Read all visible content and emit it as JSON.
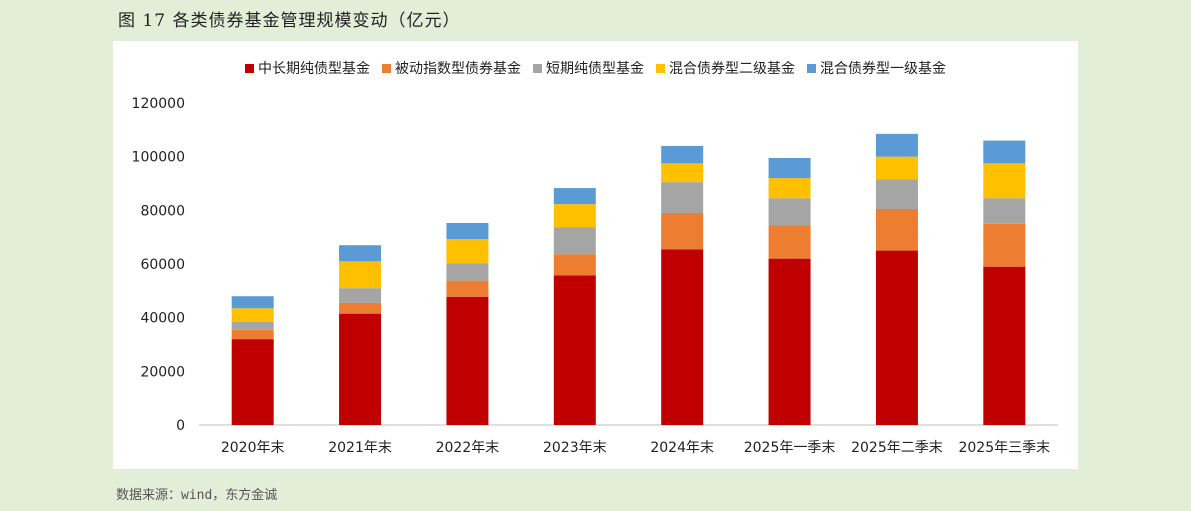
{
  "figure": {
    "title": "图 17 各类债券基金管理规模变动（亿元）",
    "source": "数据来源：wind，东方金诚"
  },
  "chart_data": {
    "type": "bar",
    "stacked": true,
    "categories": [
      "2020年末",
      "2021年末",
      "2022年末",
      "2023年末",
      "2024年末",
      "2025年一季末",
      "2025年二季末",
      "2025年三季末"
    ],
    "series": [
      {
        "name": "中长期纯债型基金",
        "color": "#c00000",
        "values": [
          32000,
          41500,
          47800,
          55800,
          65500,
          62000,
          65000,
          59000
        ]
      },
      {
        "name": "被动指数型债券基金",
        "color": "#ed7d31",
        "values": [
          3500,
          4000,
          6000,
          7800,
          13500,
          12500,
          15500,
          16000
        ]
      },
      {
        "name": "短期纯债型基金",
        "color": "#a5a5a5",
        "values": [
          3000,
          5500,
          6500,
          10000,
          11500,
          10000,
          11000,
          9500
        ]
      },
      {
        "name": "混合债券型二级基金",
        "color": "#ffc000",
        "values": [
          5000,
          10000,
          9000,
          8700,
          7000,
          7500,
          8500,
          13000
        ]
      },
      {
        "name": "混合债券型一级基金",
        "color": "#5b9bd5",
        "values": [
          4500,
          6000,
          6000,
          6000,
          6500,
          7500,
          8500,
          8500
        ]
      }
    ],
    "yticks": [
      "0",
      "20000",
      "40000",
      "60000",
      "80000",
      "100000",
      "120000"
    ],
    "ylim": [
      0,
      120000
    ],
    "legend_position": "top",
    "grid": false
  }
}
